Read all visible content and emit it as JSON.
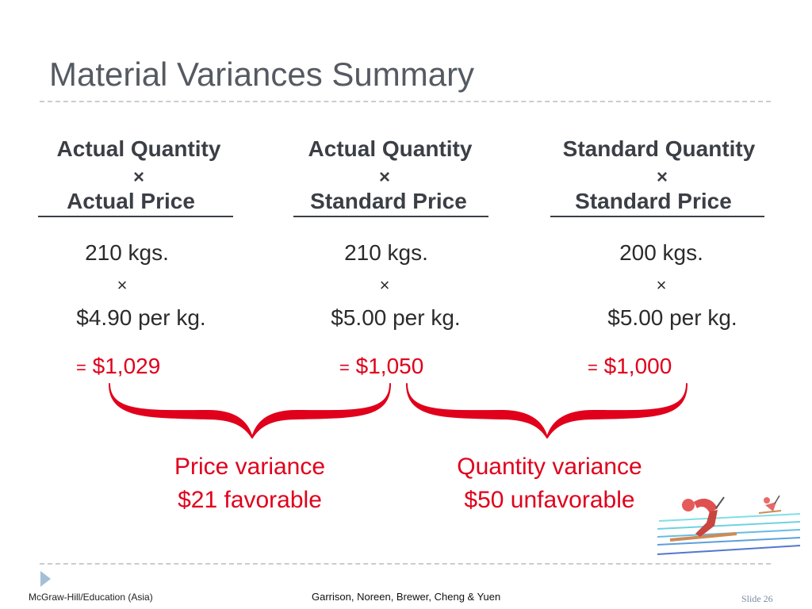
{
  "slide": {
    "title": "Material Variances Summary",
    "columns": [
      {
        "header_top": "Actual Quantity",
        "header_mult": "×",
        "header_bottom": "Actual Price",
        "quantity": "210 kgs.",
        "mult": "×",
        "price": "$4.90 per kg.",
        "total_eq": "=",
        "total_value": "$1,029"
      },
      {
        "header_top": "Actual Quantity",
        "header_mult": "×",
        "header_bottom": "Standard Price",
        "quantity": "210 kgs.",
        "mult": "×",
        "price": "$5.00 per kg.",
        "total_eq": "=",
        "total_value": "$1,050"
      },
      {
        "header_top": "Standard Quantity",
        "header_mult": "×",
        "header_bottom": "Standard Price",
        "quantity": "200 kgs.",
        "mult": "×",
        "price": "$5.00 per kg.",
        "total_eq": "=",
        "total_value": "$1,000"
      }
    ],
    "variances": [
      {
        "name": "Price variance",
        "amount": "$21 favorable"
      },
      {
        "name": "Quantity variance",
        "amount": "$50 unfavorable"
      }
    ],
    "accent_color": "#e0001b"
  },
  "footer": {
    "publisher": "McGraw-Hill/Education (Asia)",
    "authors": "Garrison, Noreen, Brewer, Cheng & Yuen",
    "slide_number": "Slide 26"
  }
}
